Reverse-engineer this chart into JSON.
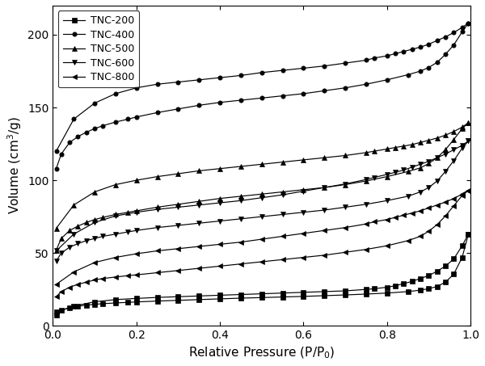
{
  "title": "",
  "xlabel": "Relative Pressure (P/P$_0$)",
  "ylabel": "Volume (cm$^3$/g)",
  "xlim": [
    0.0,
    1.0
  ],
  "ylim": [
    0,
    220
  ],
  "yticks": [
    0,
    50,
    100,
    150,
    200
  ],
  "xticks": [
    0.0,
    0.2,
    0.4,
    0.6,
    0.8,
    1.0
  ],
  "legend_labels": [
    "TNC-200",
    "TNC-400",
    "TNC-500",
    "TNC-600",
    "TNC-800"
  ],
  "markers": [
    "s",
    "o",
    "^",
    "v",
    "<"
  ],
  "background_color": "#ffffff",
  "TNC200_ads_x": [
    0.008,
    0.02,
    0.04,
    0.06,
    0.08,
    0.1,
    0.12,
    0.15,
    0.18,
    0.2,
    0.25,
    0.3,
    0.35,
    0.4,
    0.45,
    0.5,
    0.55,
    0.6,
    0.65,
    0.7,
    0.75,
    0.8,
    0.85,
    0.88,
    0.9,
    0.92,
    0.94,
    0.96,
    0.98,
    0.995
  ],
  "TNC200_ads_y": [
    7.5,
    10.5,
    12.5,
    13.5,
    14.2,
    14.8,
    15.2,
    15.7,
    16.1,
    16.4,
    17.0,
    17.5,
    18.0,
    18.5,
    19.0,
    19.4,
    19.8,
    20.2,
    20.7,
    21.2,
    21.8,
    22.5,
    23.5,
    24.5,
    25.5,
    27.0,
    30.0,
    35.5,
    47.0,
    63.0
  ],
  "TNC200_des_x": [
    0.995,
    0.98,
    0.96,
    0.94,
    0.92,
    0.9,
    0.88,
    0.86,
    0.84,
    0.82,
    0.8,
    0.77,
    0.75,
    0.7,
    0.65,
    0.6,
    0.55,
    0.5,
    0.45,
    0.4,
    0.35,
    0.3,
    0.25,
    0.2,
    0.15,
    0.1,
    0.05,
    0.008
  ],
  "TNC200_des_y": [
    63.0,
    55.0,
    46.0,
    41.0,
    37.5,
    34.5,
    32.5,
    30.5,
    29.0,
    27.5,
    26.5,
    25.5,
    25.0,
    24.0,
    23.5,
    23.0,
    22.5,
    22.0,
    21.5,
    21.0,
    20.5,
    20.0,
    19.5,
    18.8,
    18.0,
    16.5,
    13.5,
    9.5
  ],
  "TNC400_ads_x": [
    0.008,
    0.02,
    0.04,
    0.06,
    0.08,
    0.1,
    0.12,
    0.15,
    0.18,
    0.2,
    0.25,
    0.3,
    0.35,
    0.4,
    0.45,
    0.5,
    0.55,
    0.6,
    0.65,
    0.7,
    0.75,
    0.8,
    0.85,
    0.88,
    0.9,
    0.92,
    0.94,
    0.96,
    0.98,
    0.995
  ],
  "TNC400_ads_y": [
    108.0,
    118.0,
    126.0,
    130.0,
    133.0,
    135.5,
    137.5,
    140.0,
    142.0,
    143.5,
    146.5,
    149.0,
    151.5,
    153.5,
    155.0,
    156.5,
    158.0,
    159.5,
    161.5,
    163.5,
    166.0,
    169.0,
    172.5,
    175.0,
    177.5,
    181.0,
    186.5,
    193.0,
    202.0,
    208.0
  ],
  "TNC400_des_x": [
    0.995,
    0.98,
    0.96,
    0.94,
    0.92,
    0.9,
    0.88,
    0.86,
    0.84,
    0.82,
    0.8,
    0.77,
    0.75,
    0.7,
    0.65,
    0.6,
    0.55,
    0.5,
    0.45,
    0.4,
    0.35,
    0.3,
    0.25,
    0.2,
    0.15,
    0.1,
    0.05,
    0.008
  ],
  "TNC400_des_y": [
    208.0,
    205.0,
    201.5,
    198.5,
    196.0,
    193.5,
    191.5,
    190.0,
    188.5,
    187.0,
    185.5,
    184.0,
    182.5,
    180.5,
    178.5,
    177.0,
    175.5,
    174.0,
    172.0,
    170.5,
    169.0,
    167.5,
    166.0,
    163.5,
    159.5,
    153.0,
    142.0,
    120.0
  ],
  "TNC500_ads_x": [
    0.008,
    0.02,
    0.04,
    0.06,
    0.08,
    0.1,
    0.12,
    0.15,
    0.18,
    0.2,
    0.25,
    0.3,
    0.35,
    0.4,
    0.45,
    0.5,
    0.55,
    0.6,
    0.65,
    0.7,
    0.75,
    0.8,
    0.85,
    0.88,
    0.9,
    0.92,
    0.94,
    0.96,
    0.98,
    0.995
  ],
  "TNC500_ads_y": [
    52.0,
    60.0,
    65.5,
    68.5,
    71.0,
    73.0,
    74.5,
    76.5,
    78.0,
    79.0,
    81.5,
    83.5,
    85.5,
    87.5,
    89.0,
    90.5,
    92.0,
    93.5,
    95.0,
    97.0,
    99.5,
    102.5,
    106.0,
    108.5,
    111.5,
    115.5,
    121.0,
    128.0,
    135.5,
    139.5
  ],
  "TNC500_des_x": [
    0.995,
    0.98,
    0.96,
    0.94,
    0.92,
    0.9,
    0.88,
    0.86,
    0.84,
    0.82,
    0.8,
    0.77,
    0.75,
    0.7,
    0.65,
    0.6,
    0.55,
    0.5,
    0.45,
    0.4,
    0.35,
    0.3,
    0.25,
    0.2,
    0.15,
    0.1,
    0.05,
    0.008
  ],
  "TNC500_des_y": [
    139.5,
    136.5,
    133.5,
    131.0,
    129.0,
    127.5,
    126.0,
    124.5,
    123.5,
    122.5,
    121.5,
    120.0,
    119.0,
    117.0,
    115.5,
    114.0,
    112.5,
    111.0,
    109.5,
    108.0,
    106.5,
    104.5,
    102.5,
    100.0,
    97.0,
    92.0,
    83.0,
    67.0
  ],
  "TNC600_ads_x": [
    0.008,
    0.02,
    0.04,
    0.06,
    0.08,
    0.1,
    0.12,
    0.15,
    0.18,
    0.2,
    0.25,
    0.3,
    0.35,
    0.4,
    0.45,
    0.5,
    0.55,
    0.6,
    0.65,
    0.7,
    0.75,
    0.8,
    0.85,
    0.88,
    0.9,
    0.92,
    0.94,
    0.96,
    0.98,
    0.995
  ],
  "TNC600_ads_y": [
    44.5,
    50.0,
    54.0,
    56.5,
    58.5,
    60.0,
    61.5,
    63.0,
    64.5,
    65.5,
    67.5,
    69.0,
    70.5,
    72.0,
    73.5,
    75.0,
    76.5,
    78.0,
    79.5,
    81.5,
    83.5,
    86.0,
    89.0,
    92.0,
    95.0,
    99.5,
    106.0,
    113.5,
    122.0,
    127.0
  ],
  "TNC600_des_x": [
    0.995,
    0.98,
    0.96,
    0.94,
    0.92,
    0.9,
    0.88,
    0.86,
    0.84,
    0.82,
    0.8,
    0.77,
    0.75,
    0.7,
    0.65,
    0.6,
    0.55,
    0.5,
    0.45,
    0.4,
    0.35,
    0.3,
    0.25,
    0.2,
    0.15,
    0.1,
    0.05,
    0.008
  ],
  "TNC600_des_y": [
    127.0,
    124.0,
    121.0,
    118.0,
    115.5,
    113.0,
    111.0,
    109.0,
    107.0,
    105.5,
    104.0,
    102.0,
    100.5,
    97.5,
    95.0,
    92.5,
    90.0,
    88.0,
    86.0,
    84.5,
    83.0,
    81.5,
    80.0,
    78.0,
    75.5,
    71.0,
    63.0,
    51.5
  ],
  "TNC800_ads_x": [
    0.008,
    0.02,
    0.04,
    0.06,
    0.08,
    0.1,
    0.12,
    0.15,
    0.18,
    0.2,
    0.25,
    0.3,
    0.35,
    0.4,
    0.45,
    0.5,
    0.55,
    0.6,
    0.65,
    0.7,
    0.75,
    0.8,
    0.85,
    0.88,
    0.9,
    0.92,
    0.94,
    0.96,
    0.98,
    0.995
  ],
  "TNC800_ads_y": [
    20.0,
    23.5,
    26.5,
    28.5,
    30.0,
    31.5,
    32.5,
    33.5,
    34.5,
    35.0,
    36.5,
    38.0,
    39.5,
    41.0,
    42.5,
    44.0,
    45.5,
    47.0,
    48.5,
    50.5,
    52.5,
    55.0,
    58.5,
    61.5,
    65.0,
    69.5,
    75.5,
    82.5,
    89.5,
    93.0
  ],
  "TNC800_des_x": [
    0.995,
    0.98,
    0.96,
    0.94,
    0.92,
    0.9,
    0.88,
    0.86,
    0.84,
    0.82,
    0.8,
    0.77,
    0.75,
    0.7,
    0.65,
    0.6,
    0.55,
    0.5,
    0.45,
    0.4,
    0.35,
    0.3,
    0.25,
    0.2,
    0.15,
    0.1,
    0.05,
    0.008
  ],
  "TNC800_des_y": [
    93.0,
    90.5,
    87.5,
    85.0,
    83.0,
    81.0,
    79.0,
    77.5,
    76.0,
    74.5,
    73.0,
    71.5,
    70.0,
    67.5,
    65.5,
    63.5,
    61.5,
    59.5,
    57.5,
    56.0,
    54.5,
    53.0,
    51.5,
    49.5,
    47.0,
    43.5,
    37.0,
    28.5
  ]
}
